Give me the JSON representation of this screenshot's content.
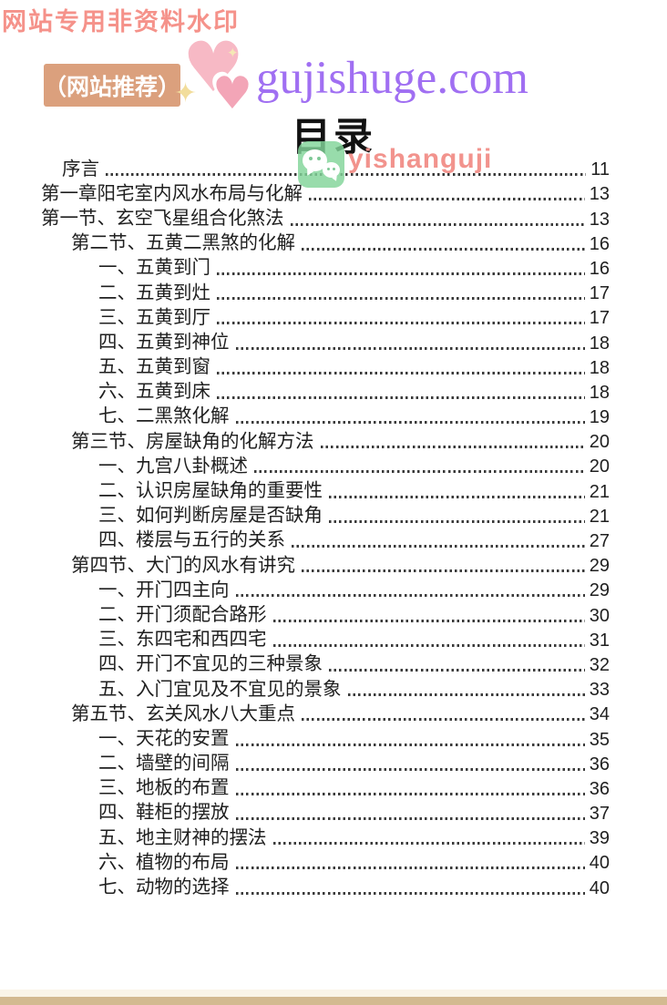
{
  "watermark_top": "网站专用非资料水印",
  "header": {
    "badge_label": "（网站推荐）",
    "site_url": "gujishuge.com",
    "badge_bg": "#dba07d",
    "site_color": "#a06ff2",
    "heart_color_big": "#f7b9c5",
    "heart_color_small": "#f3a5b7",
    "sparkle_color": "#f2dd9b",
    "heart_glyph": "♥",
    "sparkle_glyph": "✦"
  },
  "title": "目录",
  "watermark_overlay": {
    "icon": "wechat-icon",
    "text": "yishanguji",
    "icon_color": "#81d498",
    "text_color": "#f2938d"
  },
  "toc": {
    "entries": [
      {
        "label": "序言",
        "page": "11",
        "level": "preface"
      },
      {
        "label": "第一章阳宅室内风水布局与化解",
        "page": "13",
        "level": "chapter"
      },
      {
        "label": "第一节、玄空飞星组合化煞法",
        "page": "13",
        "level": "chapter"
      },
      {
        "label": "第二节、五黄二黑煞的化解",
        "page": "16",
        "level": "section"
      },
      {
        "label": "一、五黄到门",
        "page": "16",
        "level": "item"
      },
      {
        "label": "二、五黄到灶",
        "page": "17",
        "level": "item"
      },
      {
        "label": "三、五黄到厅",
        "page": "17",
        "level": "item"
      },
      {
        "label": "四、五黄到神位",
        "page": "18",
        "level": "item"
      },
      {
        "label": "五、五黄到窗",
        "page": "18",
        "level": "item"
      },
      {
        "label": "六、五黄到床",
        "page": "18",
        "level": "item"
      },
      {
        "label": "七、二黑煞化解",
        "page": "19",
        "level": "item"
      },
      {
        "label": "第三节、房屋缺角的化解方法",
        "page": "20",
        "level": "section"
      },
      {
        "label": "一、九宫八卦概述",
        "page": "20",
        "level": "item"
      },
      {
        "label": "二、认识房屋缺角的重要性",
        "page": "21",
        "level": "item"
      },
      {
        "label": "三、如何判断房屋是否缺角",
        "page": "21",
        "level": "item"
      },
      {
        "label": "四、楼层与五行的关系",
        "page": "27",
        "level": "item"
      },
      {
        "label": "第四节、大门的风水有讲究",
        "page": "29",
        "level": "section"
      },
      {
        "label": "一、开门四主向",
        "page": "29",
        "level": "item"
      },
      {
        "label": "二、开门须配合路形",
        "page": "30",
        "level": "item"
      },
      {
        "label": "三、东四宅和西四宅",
        "page": "31",
        "level": "item"
      },
      {
        "label": "四、开门不宜见的三种景象",
        "page": "32",
        "level": "item"
      },
      {
        "label": "五、入门宜见及不宜见的景象",
        "page": "33",
        "level": "item"
      },
      {
        "label": "第五节、玄关风水八大重点",
        "page": "34",
        "level": "section"
      },
      {
        "label": "一、天花的安置",
        "page": "35",
        "level": "item"
      },
      {
        "label": "二、墙壁的间隔",
        "page": "36",
        "level": "item"
      },
      {
        "label": "三、地板的布置",
        "page": "36",
        "level": "item"
      },
      {
        "label": "四、鞋柜的摆放",
        "page": "37",
        "level": "item"
      },
      {
        "label": "五、地主财神的摆法",
        "page": "39",
        "level": "item"
      },
      {
        "label": "六、植物的布局",
        "page": "40",
        "level": "item"
      },
      {
        "label": "七、动物的选择",
        "page": "40",
        "level": "item"
      }
    ]
  },
  "colors": {
    "top_watermark": "#f5928a",
    "toc_text": "#1f1f1f",
    "footer_bar": "#d3ba90"
  }
}
